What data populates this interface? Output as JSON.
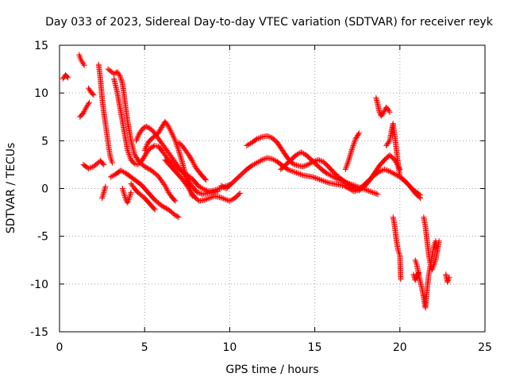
{
  "chart_data": {
    "type": "scatter",
    "title": "Day 033 of 2023, Sidereal Day-to-day VTEC variation (SDTVAR) for receiver reyk",
    "xlabel": "GPS time / hours",
    "ylabel": "SDTVAR / TECUs",
    "xlim": [
      0,
      25
    ],
    "ylim": [
      -15,
      15
    ],
    "xticks": [
      0,
      5,
      10,
      15,
      20,
      25
    ],
    "yticks": [
      -15,
      -10,
      -5,
      0,
      5,
      10,
      15
    ],
    "xtick_labels": [
      "0",
      "5",
      "10",
      "15",
      "20",
      "25"
    ],
    "ytick_labels": [
      "-15",
      "-10",
      "-5",
      "0",
      "5",
      "10",
      "15"
    ],
    "grid": true,
    "marker": "+",
    "color": "#ff0000",
    "series": [
      {
        "name": "t1",
        "x": [
          0.2,
          0.35,
          0.5
        ],
        "y": [
          11.5,
          11.9,
          11.6
        ]
      },
      {
        "name": "t2",
        "x": [
          1.15,
          1.25,
          1.35,
          1.45
        ],
        "y": [
          14.0,
          13.5,
          13.2,
          12.9
        ]
      },
      {
        "name": "t3",
        "x": [
          1.2,
          1.4,
          1.6,
          1.75
        ],
        "y": [
          7.5,
          7.9,
          8.6,
          9.0
        ]
      },
      {
        "name": "t4",
        "x": [
          1.7,
          1.85,
          2.0
        ],
        "y": [
          10.5,
          10.1,
          9.8
        ]
      },
      {
        "name": "t5",
        "x": [
          1.4,
          1.7,
          2.0,
          2.2,
          2.4,
          2.6
        ],
        "y": [
          2.5,
          2.1,
          2.3,
          2.6,
          2.9,
          2.5
        ]
      },
      {
        "name": "t6",
        "x": [
          2.3,
          2.4,
          2.5,
          2.6,
          2.7,
          2.8,
          2.9,
          3.0,
          3.1
        ],
        "y": [
          13.0,
          11.5,
          9.5,
          8.0,
          6.8,
          5.5,
          4.2,
          3.2,
          2.7
        ]
      },
      {
        "name": "t7",
        "x": [
          2.5,
          2.6,
          2.7
        ],
        "y": [
          -1.0,
          -0.4,
          0.2
        ]
      },
      {
        "name": "t8",
        "x": [
          2.85,
          3.0,
          3.2,
          3.4,
          3.55,
          3.7,
          3.85,
          4.0,
          4.2,
          4.4,
          4.6,
          4.8,
          5.0,
          5.2,
          5.4,
          5.6,
          5.8,
          6.0,
          6.2,
          6.4,
          6.6,
          6.8
        ],
        "y": [
          12.5,
          12.3,
          12.0,
          12.2,
          11.8,
          11.0,
          9.0,
          7.0,
          5.0,
          3.6,
          3.0,
          2.6,
          2.3,
          2.1,
          1.9,
          1.6,
          1.3,
          0.8,
          0.3,
          -0.4,
          -0.9,
          -1.3
        ]
      },
      {
        "name": "t9",
        "x": [
          3.2,
          3.4,
          3.6,
          3.8,
          4.0,
          4.2,
          4.4,
          4.6,
          4.8,
          5.0,
          5.2,
          5.4,
          5.6,
          5.8,
          6.0,
          6.2,
          6.4,
          6.6,
          6.8,
          7.0,
          7.2,
          7.4,
          7.6,
          7.8,
          8.0,
          8.2,
          8.5,
          8.8,
          9.1,
          9.4,
          9.7,
          10.0
        ],
        "y": [
          11.5,
          10.0,
          8.0,
          6.0,
          4.0,
          3.0,
          2.6,
          2.5,
          2.8,
          3.4,
          4.0,
          4.3,
          4.5,
          4.4,
          4.0,
          3.5,
          3.0,
          2.6,
          2.3,
          2.0,
          1.8,
          1.6,
          1.3,
          1.0,
          0.6,
          0.2,
          -0.1,
          -0.3,
          -0.2,
          0.0,
          0.2,
          0.4
        ]
      },
      {
        "name": "t10",
        "x": [
          3.0,
          3.3,
          3.6,
          3.9,
          4.2,
          4.5,
          4.8,
          5.0,
          5.2,
          5.4,
          5.6,
          5.8,
          6.0,
          6.2,
          6.4,
          6.6,
          6.8,
          7.0
        ],
        "y": [
          1.2,
          1.5,
          1.9,
          1.6,
          1.2,
          0.8,
          0.4,
          0.0,
          -0.4,
          -0.8,
          -1.2,
          -1.5,
          -1.8,
          -2.0,
          -2.2,
          -2.5,
          -2.8,
          -3.0
        ]
      },
      {
        "name": "t11",
        "x": [
          3.7,
          3.8,
          3.9,
          4.0,
          4.1,
          4.2
        ],
        "y": [
          0.0,
          -0.6,
          -1.2,
          -1.5,
          -1.0,
          -0.4
        ]
      },
      {
        "name": "t12",
        "x": [
          4.2,
          4.4,
          4.6,
          4.8,
          5.0,
          5.2,
          5.4,
          5.6
        ],
        "y": [
          0.5,
          0.0,
          -0.4,
          -0.7,
          -1.0,
          -1.4,
          -1.8,
          -2.2
        ]
      },
      {
        "name": "t13",
        "x": [
          4.5,
          4.7,
          4.9,
          5.1,
          5.3,
          5.5,
          5.7,
          5.9,
          6.1,
          6.3,
          6.5,
          6.7,
          6.9,
          7.1,
          7.3,
          7.5,
          7.7,
          7.9,
          8.1,
          8.4,
          8.7,
          9.0,
          9.3
        ],
        "y": [
          5.0,
          5.8,
          6.3,
          6.5,
          6.3,
          6.0,
          5.5,
          5.0,
          4.5,
          4.0,
          3.5,
          3.0,
          2.5,
          2.0,
          1.5,
          1.0,
          0.5,
          0.0,
          -0.4,
          -0.6,
          -0.5,
          -0.4,
          -0.3
        ]
      },
      {
        "name": "t14",
        "x": [
          5.0,
          5.2,
          5.4,
          5.6,
          5.8,
          6.0,
          6.2,
          6.4,
          6.6,
          6.8,
          7.0,
          7.2,
          7.4,
          7.6,
          7.8
        ],
        "y": [
          4.0,
          4.8,
          5.2,
          5.5,
          5.8,
          6.4,
          7.0,
          6.5,
          5.8,
          5.0,
          4.0,
          2.8,
          1.5,
          0.3,
          -0.8
        ]
      },
      {
        "name": "t15",
        "x": [
          6.2,
          6.4,
          6.6,
          6.8,
          7.0,
          7.2,
          7.4,
          7.6,
          7.8,
          8.0,
          8.2,
          8.5,
          8.8,
          9.1,
          9.4,
          9.7,
          10.0,
          10.3,
          10.6
        ],
        "y": [
          3.0,
          2.6,
          2.2,
          1.8,
          1.4,
          1.0,
          0.5,
          0.0,
          -0.6,
          -1.0,
          -1.3,
          -1.2,
          -1.0,
          -0.8,
          -0.9,
          -1.1,
          -1.3,
          -1.0,
          -0.5
        ]
      },
      {
        "name": "t16",
        "x": [
          7.0,
          7.2,
          7.4,
          7.6,
          7.8,
          8.0,
          8.3,
          8.6
        ],
        "y": [
          4.8,
          4.5,
          4.0,
          3.5,
          2.9,
          2.2,
          1.5,
          0.9
        ]
      },
      {
        "name": "t17",
        "x": [
          9.5,
          9.8,
          10.1,
          10.4,
          10.7,
          11.0,
          11.3,
          11.6,
          11.9,
          12.2,
          12.5,
          12.8,
          13.1,
          13.4,
          13.7,
          14.0,
          14.3,
          14.6,
          14.9,
          15.2,
          15.5,
          15.8,
          16.1,
          16.4,
          16.7,
          17.0,
          17.3,
          17.6,
          17.9,
          18.2,
          18.5,
          18.8,
          19.1,
          19.4,
          19.7,
          20.0,
          20.3,
          20.6,
          20.9,
          21.2
        ],
        "y": [
          0.3,
          0.0,
          0.5,
          1.0,
          1.5,
          2.0,
          2.4,
          2.7,
          3.0,
          3.2,
          3.1,
          2.8,
          2.4,
          2.0,
          1.8,
          1.6,
          1.4,
          1.3,
          1.2,
          1.0,
          0.8,
          0.6,
          0.5,
          0.4,
          0.3,
          0.0,
          -0.3,
          -0.1,
          0.4,
          0.9,
          1.4,
          1.8,
          2.0,
          1.8,
          1.5,
          1.2,
          0.8,
          0.2,
          -0.5,
          -1.0
        ]
      },
      {
        "name": "t18",
        "x": [
          11.0,
          11.3,
          11.6,
          11.9,
          12.2,
          12.5,
          12.8,
          13.1,
          13.4,
          13.7,
          14.0,
          14.3,
          14.6,
          14.9,
          15.2,
          15.5,
          15.8,
          16.1,
          16.4,
          16.7,
          17.0,
          17.3,
          17.6,
          17.9,
          18.2,
          18.5,
          18.8,
          19.1,
          19.4,
          19.7,
          20.0
        ],
        "y": [
          4.5,
          4.8,
          5.2,
          5.4,
          5.5,
          5.3,
          4.8,
          4.0,
          3.2,
          2.6,
          2.4,
          2.3,
          2.5,
          2.8,
          3.0,
          2.8,
          2.3,
          1.7,
          1.2,
          0.8,
          0.4,
          0.0,
          -0.2,
          0.2,
          0.8,
          1.6,
          2.4,
          3.0,
          3.5,
          3.0,
          2.0
        ]
      },
      {
        "name": "t19",
        "x": [
          13.0,
          13.3,
          13.6,
          13.9,
          14.2,
          14.5,
          14.8,
          15.1,
          15.4,
          15.7,
          16.0,
          16.3,
          16.6,
          16.9,
          17.2,
          17.5,
          17.8,
          18.1,
          18.4,
          18.7
        ],
        "y": [
          2.0,
          2.5,
          3.0,
          3.5,
          3.8,
          3.5,
          3.0,
          2.5,
          2.0,
          1.6,
          1.3,
          1.0,
          0.8,
          0.6,
          0.4,
          0.2,
          0.0,
          -0.2,
          -0.4,
          -0.6
        ]
      },
      {
        "name": "t20",
        "x": [
          16.8,
          17.0,
          17.2,
          17.4,
          17.6
        ],
        "y": [
          2.0,
          3.0,
          4.2,
          5.2,
          5.8
        ]
      },
      {
        "name": "t21",
        "x": [
          18.6,
          18.7,
          18.8,
          18.9,
          19.0,
          19.1,
          19.2,
          19.3,
          19.4
        ],
        "y": [
          9.5,
          8.8,
          8.0,
          7.6,
          7.8,
          8.2,
          8.5,
          8.3,
          8.0
        ]
      },
      {
        "name": "t22",
        "x": [
          19.2,
          19.4,
          19.5,
          19.6,
          19.7,
          19.8,
          19.9,
          20.0,
          20.2,
          20.4,
          20.6,
          20.8,
          21.0,
          21.2
        ],
        "y": [
          4.5,
          5.0,
          6.0,
          6.8,
          5.5,
          4.0,
          2.5,
          1.2,
          0.9,
          0.6,
          0.2,
          -0.2,
          -0.4,
          -0.7
        ]
      },
      {
        "name": "t23",
        "x": [
          19.6,
          19.7,
          19.8,
          19.9,
          20.0,
          20.05
        ],
        "y": [
          -3.0,
          -4.0,
          -5.5,
          -6.5,
          -7.0,
          -9.5
        ]
      },
      {
        "name": "t24",
        "x": [
          20.9,
          21.0,
          21.1,
          21.2,
          21.3,
          21.4,
          21.5,
          21.6,
          21.7,
          21.8,
          21.9,
          22.0,
          22.1,
          22.2
        ],
        "y": [
          -7.5,
          -8.0,
          -9.0,
          -9.8,
          -10.5,
          -11.5,
          -12.5,
          -10.5,
          -9.0,
          -8.0,
          -7.0,
          -6.0,
          -5.5,
          -6.5
        ]
      },
      {
        "name": "t25",
        "x": [
          21.4,
          21.5,
          21.6,
          21.7,
          21.8,
          21.9,
          22.0,
          22.1,
          22.2,
          22.3
        ],
        "y": [
          -3.0,
          -4.0,
          -5.5,
          -7.0,
          -8.0,
          -8.5,
          -8.0,
          -7.5,
          -6.5,
          -5.5
        ]
      },
      {
        "name": "t26",
        "x": [
          20.8,
          20.9,
          21.0,
          21.1
        ],
        "y": [
          -9.0,
          -9.6,
          -9.2,
          -8.8
        ]
      },
      {
        "name": "t27",
        "x": [
          22.7,
          22.8,
          22.9
        ],
        "y": [
          -9.0,
          -9.8,
          -9.3
        ]
      }
    ]
  }
}
